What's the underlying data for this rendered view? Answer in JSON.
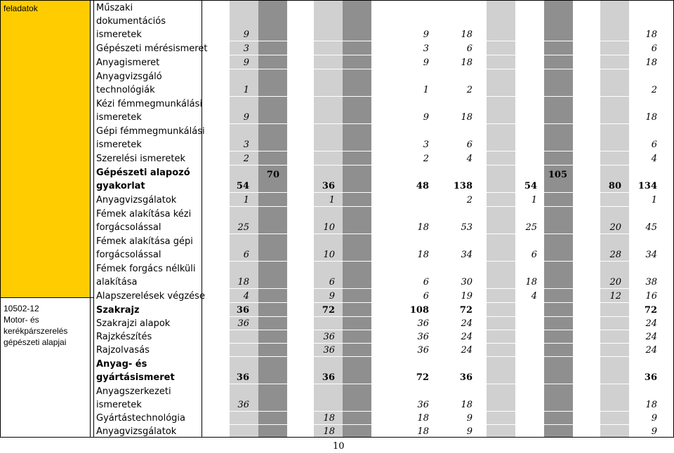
{
  "left_block_1": "feladatok",
  "left_block_2": [
    "10502-12",
    "Motor- és",
    "kerékpárszerelés",
    "gépészeti alapjai"
  ],
  "rows_top": [
    {
      "name": [
        "Műszaki",
        "dokumentációs",
        "ismeretek"
      ],
      "c1": "9",
      "c5": "9",
      "c6": "18",
      "c10": "18"
    },
    {
      "name": [
        "Gépészeti mérésismeret"
      ],
      "c1": "3",
      "c5": "3",
      "c6": "6",
      "c10": "6"
    },
    {
      "name": [
        "Anyagismeret"
      ],
      "c1": "9",
      "c5": "9",
      "c6": "18",
      "c10": "18"
    },
    {
      "name": [
        "Anyagvizsgáló",
        "technológiák"
      ],
      "c1": "1",
      "c5": "1",
      "c6": "2",
      "c10": "2"
    },
    {
      "name": [
        "Kézi fémmegmunkálási",
        "ismeretek"
      ],
      "c1": "9",
      "c5": "9",
      "c6": "18",
      "c10": "18"
    },
    {
      "name": [
        "Gépi fémmegmunkálási",
        "ismeretek"
      ],
      "c1": "3",
      "c5": "3",
      "c6": "6",
      "c10": "6"
    },
    {
      "name": [
        "Szerelési ismeretek"
      ],
      "c1": "2",
      "c5": "2",
      "c6": "4",
      "c10": "4"
    },
    {
      "name": [
        "Gépészeti alapozó",
        "gyakorlat"
      ],
      "c1": "54",
      "c2": "70",
      "c3": "36",
      "c5": "48",
      "c6": "138",
      "c7": "54",
      "c8": "105",
      "c9": "80",
      "c10": "134"
    },
    {
      "name": [
        "Anyagvizsgálatok"
      ],
      "c1": "1",
      "c3": "1",
      "c6": "2",
      "c7": "1",
      "c10": "1"
    },
    {
      "name": [
        "Fémek alakítása kézi",
        "forgácsolással"
      ],
      "c1": "25",
      "c3": "10",
      "c5": "18",
      "c6": "53",
      "c7": "25",
      "c9": "20",
      "c10": "45"
    },
    {
      "name": [
        "Fémek alakítása gépi",
        "forgácsolással"
      ],
      "c1": "6",
      "c3": "10",
      "c5": "18",
      "c6": "34",
      "c7": "6",
      "c9": "28",
      "c10": "34"
    },
    {
      "name": [
        "Fémek forgács nélküli",
        "alakítása"
      ],
      "c1": "18",
      "c3": "6",
      "c5": "6",
      "c6": "30",
      "c7": "18",
      "c9": "20",
      "c10": "38"
    },
    {
      "name": [
        "Alapszerelések végzése"
      ],
      "c1": "4",
      "c3": "9",
      "c5": "6",
      "c6": "19",
      "c7": "4",
      "c9": "12",
      "c10": "16"
    }
  ],
  "rows_bottom": [
    {
      "name": [
        "Szakrajz"
      ],
      "c1": "36",
      "c3": "72",
      "c5": "108",
      "c6": "72",
      "c10": "72",
      "bold": true
    },
    {
      "name": [
        "Szakrajzi alapok"
      ],
      "c1": "36",
      "c5": "36",
      "c6": "24",
      "c10": "24"
    },
    {
      "name": [
        "Rajzkészítés"
      ],
      "c3": "36",
      "c5": "36",
      "c6": "24",
      "c10": "24"
    },
    {
      "name": [
        "Rajzolvasás"
      ],
      "c3": "36",
      "c5": "36",
      "c6": "24",
      "c10": "24"
    },
    {
      "name": [
        "Anyag- és",
        "gyártásismeret"
      ],
      "c1": "36",
      "c3": "36",
      "c5": "72",
      "c6": "36",
      "c10": "36",
      "bold": true
    },
    {
      "name": [
        "Anyagszerkezeti",
        "ismeretek"
      ],
      "c1": "36",
      "c5": "36",
      "c6": "18",
      "c10": "18"
    },
    {
      "name": [
        "Gyártástechnológia"
      ],
      "c3": "18",
      "c5": "18",
      "c6": "9",
      "c10": "9"
    },
    {
      "name": [
        "Anyagvizsgálatok"
      ],
      "c3": "18",
      "c5": "18",
      "c6": "9",
      "c10": "9"
    }
  ],
  "footer_number": "10"
}
